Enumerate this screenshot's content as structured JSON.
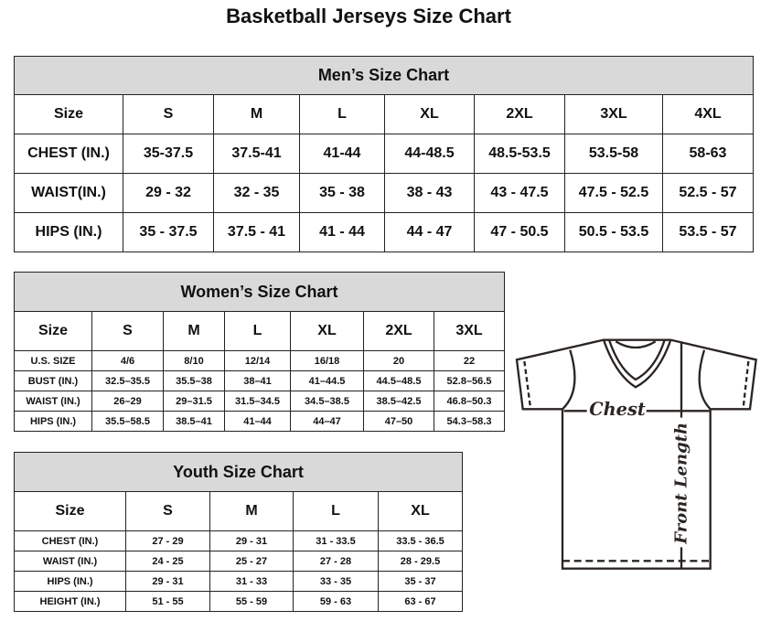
{
  "title": "Basketball Jerseys Size Chart",
  "mens": {
    "caption": "Men’s Size Chart",
    "header": [
      "Size",
      "S",
      "M",
      "L",
      "XL",
      "2XL",
      "3XL",
      "4XL"
    ],
    "rows": [
      [
        "CHEST (IN.)",
        "35-37.5",
        "37.5-41",
        "41-44",
        "44-48.5",
        "48.5-53.5",
        "53.5-58",
        "58-63"
      ],
      [
        "WAIST(IN.)",
        "29 - 32",
        "32 - 35",
        "35 - 38",
        "38 - 43",
        "43 - 47.5",
        "47.5 - 52.5",
        "52.5 - 57"
      ],
      [
        "HIPS (IN.)",
        "35 - 37.5",
        "37.5 - 41",
        "41 - 44",
        "44 - 47",
        "47 - 50.5",
        "50.5 - 53.5",
        "53.5 - 57"
      ]
    ]
  },
  "womens": {
    "caption": "Women’s Size Chart",
    "header": [
      "Size",
      "S",
      "M",
      "L",
      "XL",
      "2XL",
      "3XL"
    ],
    "rows": [
      [
        "U.S. SIZE",
        "4/6",
        "8/10",
        "12/14",
        "16/18",
        "20",
        "22"
      ],
      [
        "BUST (IN.)",
        "32.5–35.5",
        "35.5–38",
        "38–41",
        "41–44.5",
        "44.5–48.5",
        "52.8–56.5"
      ],
      [
        "WAIST (IN.)",
        "26–29",
        "29–31.5",
        "31.5–34.5",
        "34.5–38.5",
        "38.5–42.5",
        "46.8–50.3"
      ],
      [
        "HIPS (IN.)",
        "35.5–58.5",
        "38.5–41",
        "41–44",
        "44–47",
        "47–50",
        "54.3–58.3"
      ]
    ]
  },
  "youth": {
    "caption": "Youth Size Chart",
    "header": [
      "Size",
      "S",
      "M",
      "L",
      "XL"
    ],
    "rows": [
      [
        "CHEST (IN.)",
        "27 - 29",
        "29 - 31",
        "31 - 33.5",
        "33.5 - 36.5"
      ],
      [
        "WAIST (IN.)",
        "24 - 25",
        "25 - 27",
        "27 - 28",
        "28 - 29.5"
      ],
      [
        "HIPS (IN.)",
        "29 - 31",
        "31 - 33",
        "33 - 35",
        "35 - 37"
      ],
      [
        "HEIGHT (IN.)",
        "51 - 55",
        "55 - 59",
        "59 - 63",
        "63 - 67"
      ]
    ]
  },
  "diagram": {
    "chest_label": "Chest",
    "length_label": "Front Length"
  }
}
